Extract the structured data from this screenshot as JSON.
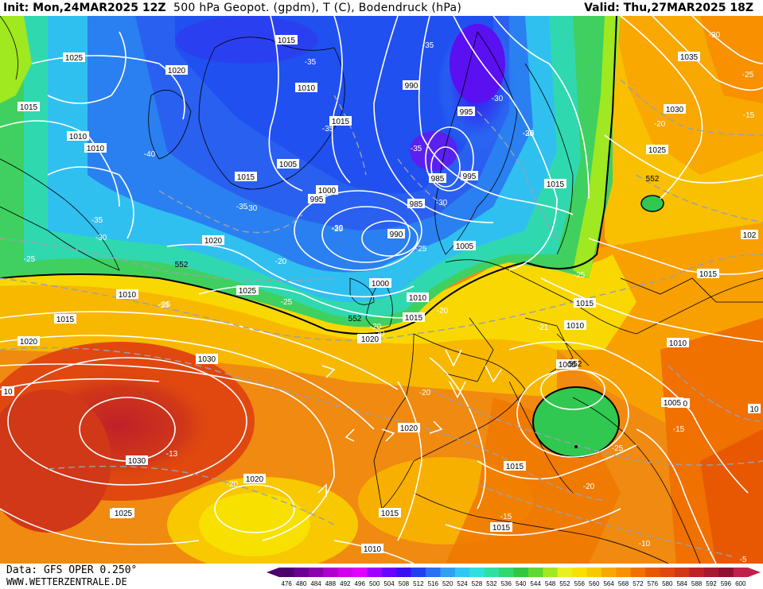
{
  "header": {
    "init": "Init: Mon,24MAR2025 12Z",
    "field": "500 hPa Geopot. (gpdm), T (C), Bodendruck (hPa)",
    "valid": "Valid: Thu,27MAR2025 18Z"
  },
  "footer": {
    "data_source": "Data: GFS OPER 0.250°",
    "website": "WWW.WETTERZENTRALE.DE"
  },
  "legend": {
    "ticks": [
      "476",
      "480",
      "484",
      "488",
      "492",
      "496",
      "500",
      "504",
      "508",
      "512",
      "516",
      "520",
      "524",
      "528",
      "532",
      "536",
      "540",
      "544",
      "548",
      "552",
      "556",
      "560",
      "564",
      "568",
      "572",
      "576",
      "580",
      "584",
      "588",
      "592",
      "596",
      "600"
    ],
    "colors": [
      "#4b006e",
      "#6a008f",
      "#8c00b0",
      "#b000cf",
      "#d000e8",
      "#e000ff",
      "#a000ff",
      "#6a00ff",
      "#3a10f0",
      "#2040f0",
      "#2a70f0",
      "#30a0f0",
      "#30c8f0",
      "#30e0e0",
      "#30e0a0",
      "#30d870",
      "#30c840",
      "#60d830",
      "#a0e820",
      "#e8f020",
      "#f8e000",
      "#f8c800",
      "#f8a800",
      "#f89000",
      "#f07000",
      "#e85800",
      "#e04810",
      "#d03818",
      "#c02028",
      "#a81830",
      "#901030",
      "#c0204a"
    ]
  },
  "map": {
    "isobars": [
      {
        "label": "1025"
      },
      {
        "label": "1020"
      },
      {
        "label": "1015"
      },
      {
        "label": "1010"
      },
      {
        "label": "1010"
      },
      {
        "label": "1015"
      },
      {
        "label": "1010"
      },
      {
        "label": "1015"
      },
      {
        "label": "1005"
      },
      {
        "label": "1015"
      },
      {
        "label": "1000"
      },
      {
        "label": "995"
      },
      {
        "label": "990"
      },
      {
        "label": "985"
      },
      {
        "label": "995"
      },
      {
        "label": "990"
      },
      {
        "label": "985"
      },
      {
        "label": "995"
      },
      {
        "label": "1015"
      },
      {
        "label": "1035"
      },
      {
        "label": "1030"
      },
      {
        "label": "1025"
      },
      {
        "label": "1020"
      },
      {
        "label": "1010"
      },
      {
        "label": "1025"
      },
      {
        "label": "1015"
      },
      {
        "label": "1020"
      },
      {
        "label": "1030"
      },
      {
        "label": "1030"
      },
      {
        "label": "1025"
      },
      {
        "label": "1020"
      },
      {
        "label": "1000"
      },
      {
        "label": "1010"
      },
      {
        "label": "1015"
      },
      {
        "label": "1020"
      },
      {
        "label": "1005"
      },
      {
        "label": "1015"
      },
      {
        "label": "1010"
      },
      {
        "label": "1005"
      },
      {
        "label": "1010"
      },
      {
        "label": "1010"
      },
      {
        "label": "1005"
      },
      {
        "label": "1020"
      },
      {
        "label": "1015"
      },
      {
        "label": "1015"
      },
      {
        "label": "1015"
      },
      {
        "label": "1010"
      },
      {
        "label": "1015"
      },
      {
        "label": "1020"
      },
      {
        "label": "1025"
      },
      {
        "label": "1030"
      },
      {
        "label": "10"
      },
      {
        "label": "102"
      },
      {
        "label": "10"
      }
    ],
    "temps": [
      {
        "label": "-35"
      },
      {
        "label": "-35"
      },
      {
        "label": "-30"
      },
      {
        "label": "-35"
      },
      {
        "label": "-30"
      },
      {
        "label": "-25"
      },
      {
        "label": "-35"
      },
      {
        "label": "-30"
      },
      {
        "label": "-40"
      },
      {
        "label": "-35"
      },
      {
        "label": "-30"
      },
      {
        "label": "-25"
      },
      {
        "label": "-30"
      },
      {
        "label": "-30"
      },
      {
        "label": "-25"
      },
      {
        "label": "-20"
      },
      {
        "label": "-15"
      },
      {
        "label": "-25"
      },
      {
        "label": "-30"
      },
      {
        "label": "-25"
      },
      {
        "label": "-20"
      },
      {
        "label": "-20"
      },
      {
        "label": "-21"
      },
      {
        "label": "-20"
      },
      {
        "label": "-25"
      },
      {
        "label": "-35"
      },
      {
        "label": "-25"
      },
      {
        "label": "-20"
      },
      {
        "label": "-15"
      },
      {
        "label": "-15"
      },
      {
        "label": "-13"
      },
      {
        "label": "-20"
      },
      {
        "label": "-20"
      },
      {
        "label": "-15"
      },
      {
        "label": "-25"
      },
      {
        "label": "-20"
      },
      {
        "label": "-10"
      },
      {
        "label": "-5"
      },
      {
        "label": "-15"
      }
    ],
    "heights": [
      {
        "label": "552"
      },
      {
        "label": "552"
      },
      {
        "label": "552"
      },
      {
        "label": "552"
      }
    ]
  }
}
